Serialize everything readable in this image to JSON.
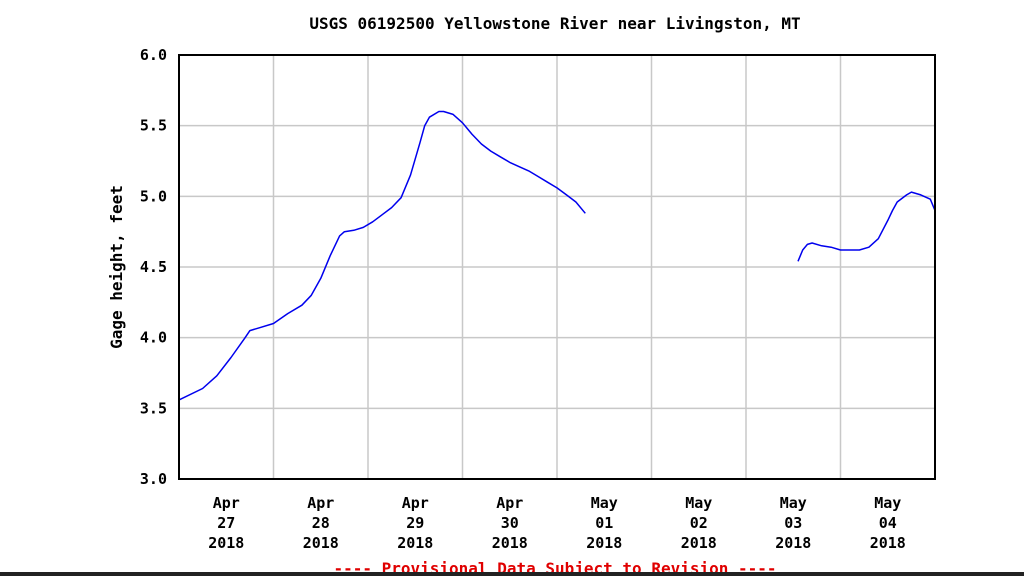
{
  "chart_data": {
    "type": "line",
    "title": "USGS 06192500 Yellowstone River near Livingston, MT",
    "xlabel": "",
    "ylabel": "Gage height, feet",
    "ylim": [
      3.0,
      6.0
    ],
    "yticks": [
      "6.0",
      "5.5",
      "5.0",
      "4.5",
      "4.0",
      "3.5",
      "3.0"
    ],
    "ytick_values": [
      6.0,
      5.5,
      5.0,
      4.5,
      4.0,
      3.5,
      3.0
    ],
    "xlim_days": [
      0,
      8
    ],
    "xticks": [
      {
        "day": 0.5,
        "lines": [
          "Apr",
          "27",
          "2018"
        ]
      },
      {
        "day": 1.5,
        "lines": [
          "Apr",
          "28",
          "2018"
        ]
      },
      {
        "day": 2.5,
        "lines": [
          "Apr",
          "29",
          "2018"
        ]
      },
      {
        "day": 3.5,
        "lines": [
          "Apr",
          "30",
          "2018"
        ]
      },
      {
        "day": 4.5,
        "lines": [
          "May",
          "01",
          "2018"
        ]
      },
      {
        "day": 5.5,
        "lines": [
          "May",
          "02",
          "2018"
        ]
      },
      {
        "day": 6.5,
        "lines": [
          "May",
          "03",
          "2018"
        ]
      },
      {
        "day": 7.5,
        "lines": [
          "May",
          "04",
          "2018"
        ]
      }
    ],
    "grid": true,
    "x_unit_note": "x values are days since Apr 27 2018 00:00",
    "series": [
      {
        "name": "Gage height (segment 1)",
        "color": "#0000ee",
        "x": [
          0.0,
          0.25,
          0.4,
          0.55,
          0.7,
          0.75,
          0.85,
          1.0,
          1.15,
          1.3,
          1.4,
          1.5,
          1.6,
          1.7,
          1.75,
          1.85,
          1.95,
          2.05,
          2.15,
          2.25,
          2.35,
          2.45,
          2.55,
          2.6,
          2.65,
          2.75,
          2.8,
          2.9,
          3.0,
          3.1,
          3.2,
          3.3,
          3.4,
          3.5,
          3.6,
          3.7,
          3.8,
          3.9,
          4.0,
          4.1,
          4.2,
          4.3
        ],
        "y": [
          3.56,
          3.64,
          3.73,
          3.86,
          4.0,
          4.05,
          4.07,
          4.1,
          4.17,
          4.23,
          4.3,
          4.42,
          4.58,
          4.72,
          4.75,
          4.76,
          4.78,
          4.82,
          4.87,
          4.92,
          4.99,
          5.15,
          5.38,
          5.5,
          5.56,
          5.6,
          5.6,
          5.58,
          5.52,
          5.44,
          5.37,
          5.32,
          5.28,
          5.24,
          5.21,
          5.18,
          5.14,
          5.1,
          5.06,
          5.01,
          4.96,
          4.88
        ]
      },
      {
        "name": "Gage height (segment 2)",
        "color": "#0000ee",
        "x": [
          6.55,
          6.6,
          6.65,
          6.7,
          6.8,
          6.9,
          7.0,
          7.1,
          7.2,
          7.3,
          7.4,
          7.5,
          7.55,
          7.6,
          7.7,
          7.75,
          7.85,
          7.95,
          8.0
        ],
        "y": [
          4.54,
          4.62,
          4.66,
          4.67,
          4.65,
          4.64,
          4.62,
          4.62,
          4.62,
          4.64,
          4.7,
          4.83,
          4.9,
          4.96,
          5.01,
          5.03,
          5.01,
          4.98,
          4.9
        ]
      }
    ]
  },
  "footer": "---- Provisional Data Subject to Revision ----"
}
